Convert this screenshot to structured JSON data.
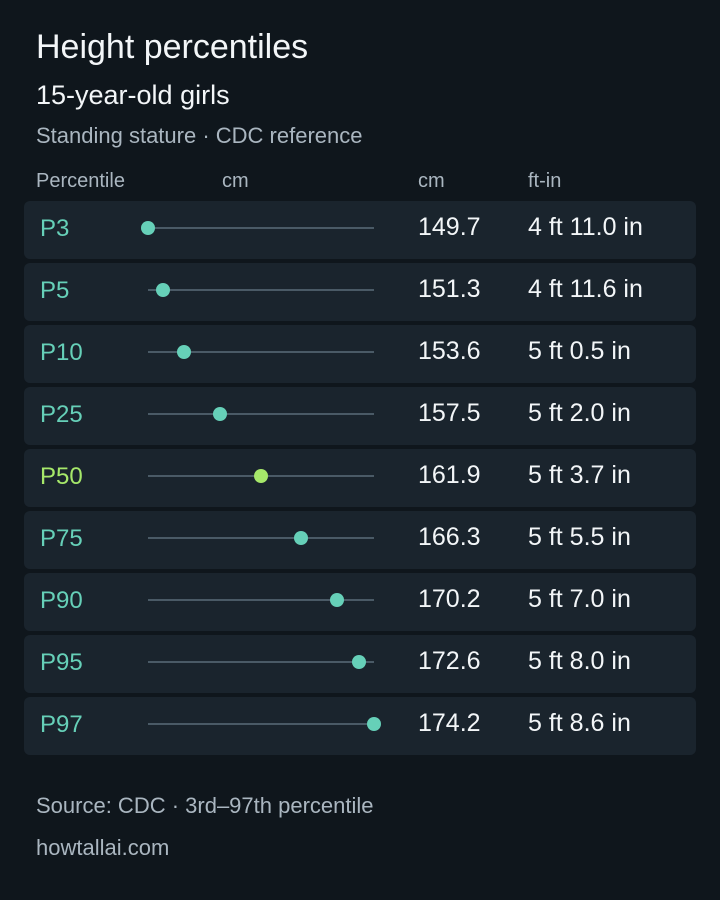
{
  "header": {
    "title": "Height percentiles",
    "subtitle": "15-year-old girls",
    "caption": "Standing stature · CDC reference"
  },
  "columns": {
    "percentile": "Percentile",
    "chart": "cm",
    "cm": "cm",
    "ftin": "ft-in"
  },
  "colors": {
    "accent": "#66d0b8",
    "median": "#a6e86a",
    "background": "#0f161c",
    "row": "#1a242d"
  },
  "chart_data": {
    "type": "scatter",
    "categories": [
      "P3",
      "P5",
      "P10",
      "P25",
      "P50",
      "P75",
      "P90",
      "P95",
      "P97"
    ],
    "values": [
      149.7,
      151.3,
      153.6,
      157.5,
      161.9,
      166.3,
      170.2,
      172.6,
      174.2
    ],
    "ft_in": [
      "4 ft 11.0 in",
      "4 ft 11.6 in",
      "5 ft 0.5 in",
      "5 ft 2.0 in",
      "5 ft 3.7 in",
      "5 ft 5.5 in",
      "5 ft 7.0 in",
      "5 ft 8.0 in",
      "5 ft 8.6 in"
    ],
    "highlight": "P50",
    "xlim": [
      149.7,
      174.2
    ],
    "xlabel": "cm"
  },
  "footer": {
    "source": "Source: CDC · 3rd–97th percentile",
    "site": "howtallai.com"
  }
}
